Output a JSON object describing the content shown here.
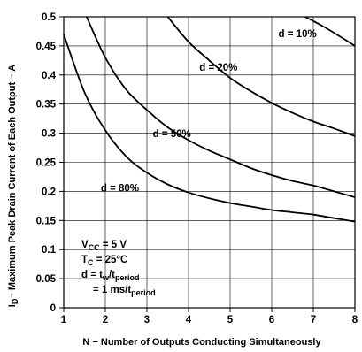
{
  "chart_data": {
    "type": "line",
    "xlabel": "N − Number of Outputs Conducting Simultaneously",
    "ylabel_main": "− Maximum Peak Drain Current of Each Output − A",
    "ylabel_symbol": "I",
    "ylabel_subscript": "D",
    "xlim": [
      1,
      8
    ],
    "ylim": [
      0,
      0.5
    ],
    "x_ticks": [
      "1",
      "2",
      "3",
      "4",
      "5",
      "6",
      "7",
      "8"
    ],
    "y_ticks": [
      "0",
      "0.05",
      "0.1",
      "0.15",
      "0.2",
      "0.25",
      "0.3",
      "0.35",
      "0.4",
      "0.45",
      "0.5"
    ],
    "grid": true,
    "series": [
      {
        "name": "d = 10%",
        "x": [
          6.8,
          7.2,
          7.6,
          8.0
        ],
        "y": [
          0.5,
          0.485,
          0.468,
          0.45
        ]
      },
      {
        "name": "d = 20%",
        "x": [
          3.5,
          4,
          4.5,
          5,
          5.5,
          6,
          6.5,
          7,
          7.5,
          8
        ],
        "y": [
          0.5,
          0.457,
          0.425,
          0.395,
          0.372,
          0.352,
          0.335,
          0.32,
          0.308,
          0.295
        ]
      },
      {
        "name": "d = 50%",
        "x": [
          1.55,
          2,
          2.5,
          3,
          3.5,
          4,
          4.5,
          5,
          5.5,
          6,
          6.5,
          7,
          7.5,
          8
        ],
        "y": [
          0.5,
          0.43,
          0.375,
          0.34,
          0.31,
          0.288,
          0.27,
          0.255,
          0.24,
          0.228,
          0.218,
          0.21,
          0.2,
          0.19
        ]
      },
      {
        "name": "d = 80%",
        "x": [
          1,
          1.5,
          2,
          2.5,
          3,
          3.5,
          4,
          4.5,
          5,
          5.5,
          6,
          6.5,
          7,
          7.5,
          8
        ],
        "y": [
          0.47,
          0.37,
          0.305,
          0.26,
          0.232,
          0.212,
          0.198,
          0.188,
          0.18,
          0.174,
          0.168,
          0.164,
          0.16,
          0.154,
          0.148
        ]
      }
    ],
    "label_positions": [
      {
        "series": "d = 10%",
        "x": 6.62,
        "y": 0.465
      },
      {
        "series": "d = 20%",
        "x": 4.72,
        "y": 0.407
      },
      {
        "series": "d = 50%",
        "x": 3.6,
        "y": 0.293
      },
      {
        "series": "d = 80%",
        "x": 2.35,
        "y": 0.2
      }
    ],
    "conditions": {
      "line1": {
        "main": "V",
        "sub": "CC",
        "rest": " = 5 V"
      },
      "line2": {
        "main": "T",
        "sub": "C",
        "rest": " = 25°C"
      },
      "line3": {
        "main": "d = t",
        "sub": "w",
        "mid": "/t",
        "sub2": "period"
      },
      "line4": {
        "main": "= 1 ms/t",
        "sub": "period"
      }
    }
  }
}
